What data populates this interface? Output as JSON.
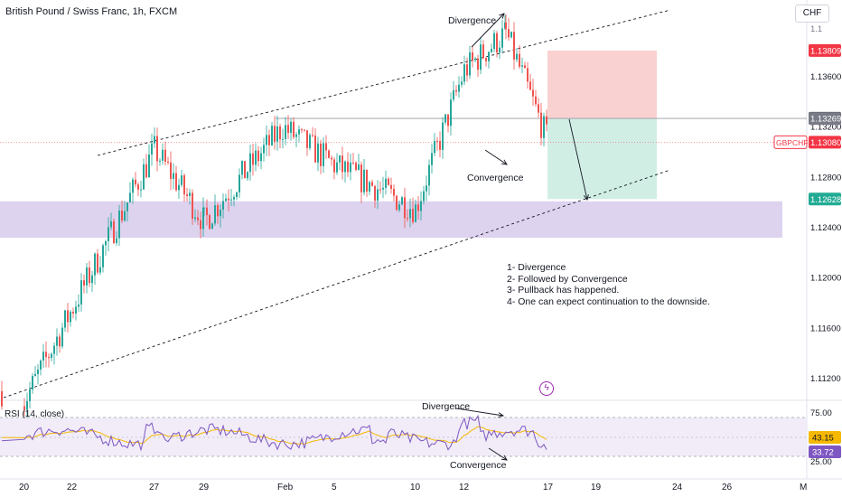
{
  "header": {
    "symbol_title": "British Pound / Swiss Franc, 1h, FXCM",
    "currency": "CHF"
  },
  "notes": [
    "1- Divergence",
    "2- Followed by Convergence",
    "3- Pullback has happened.",
    "4- One can expect continuation to the downside."
  ],
  "annotations": {
    "divergence_price": "Divergence",
    "convergence_price": "Convergence",
    "divergence_rsi": "Divergence",
    "convergence_rsi": "Convergence"
  },
  "rsi_label": "RSI (14, close)",
  "colors": {
    "up": "#26a69a",
    "down": "#ef5350",
    "rsi": "#7e57c2",
    "rsi_ma": "#f5b800",
    "zone": "#d1c4e9",
    "stop": "#f8c9c9",
    "target": "#c9ebe1",
    "badge_dark": "#131722",
    "badge_red": "#f23645",
    "badge_gray": "#787b86",
    "badge_green": "#22ab94",
    "badge_purple": "#7e57c2"
  },
  "chart_data": [
    {
      "type": "candlestick",
      "title": "British Pound / Swiss Franc, 1h, FXCM",
      "x_tick_labels": [
        "20",
        "22",
        "27",
        "29",
        "Feb",
        "5",
        "10",
        "12",
        "17",
        "19",
        "24",
        "26",
        "M"
      ],
      "y_tick_labels": [
        "1.11200",
        "1.11600",
        "1.12000",
        "1.12400",
        "1.12800",
        "1.13200",
        "1.13600"
      ],
      "ylim": [
        1.1085,
        1.1405
      ],
      "price_badges": [
        {
          "label": "",
          "value": "1.13809",
          "role": "stop"
        },
        {
          "label": "",
          "value": "1.13270",
          "role": "entry"
        },
        {
          "label": "",
          "value": "1.13269",
          "role": "current-line"
        },
        {
          "label": "GBPCHF",
          "value": "1.13080",
          "role": "last"
        },
        {
          "label": "",
          "value": "1.12628",
          "role": "target"
        }
      ],
      "support_zone": [
        1.1232,
        1.1261
      ],
      "position": {
        "entry": 1.1327,
        "stop": 1.13809,
        "target": 1.12628
      },
      "key_points": [
        {
          "x": "20",
          "close": 1.1102
        },
        {
          "x": "27",
          "close": 1.1302
        },
        {
          "x": "29",
          "close": 1.1245
        },
        {
          "x": "Feb",
          "close": 1.132
        },
        {
          "x": "5",
          "close": 1.129
        },
        {
          "x": "10",
          "close": 1.1255
        },
        {
          "x": "12",
          "close": 1.1365
        },
        {
          "x": "15",
          "close": 1.1395
        },
        {
          "x": "17",
          "close": 1.1308
        }
      ]
    },
    {
      "type": "line",
      "title": "RSI (14, close)",
      "series": [
        {
          "name": "",
          "role": "rsi"
        },
        {
          "name": "",
          "role": "ma"
        }
      ],
      "y_tick_labels": [
        "75.00",
        "25.00"
      ],
      "value_badges": [
        {
          "value": "43.15"
        },
        {
          "value": "33.72"
        }
      ]
    }
  ]
}
